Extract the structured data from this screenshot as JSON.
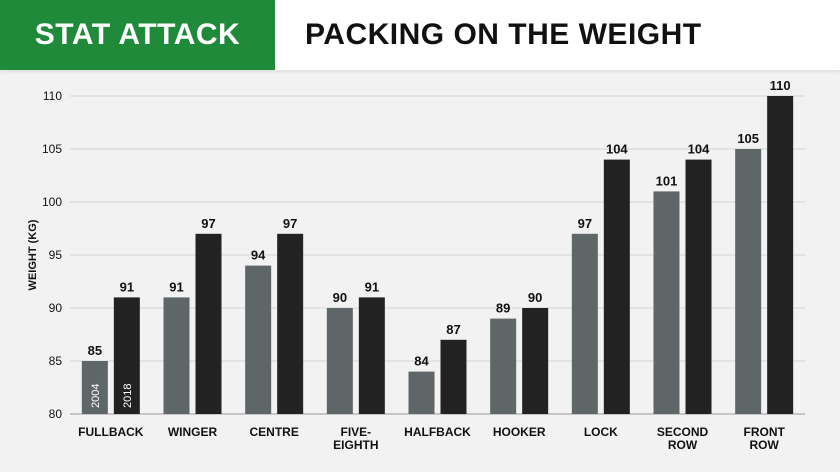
{
  "header": {
    "brand": "STAT ATTACK",
    "title": "PACKING ON THE WEIGHT"
  },
  "chart_data": {
    "type": "bar",
    "title": "PACKING ON THE WEIGHT",
    "xlabel": "",
    "ylabel": "WEIGHT (KG)",
    "ylim": [
      80,
      110
    ],
    "yticks": [
      80,
      85,
      90,
      95,
      100,
      105,
      110
    ],
    "grid": true,
    "legend": "inside first group bars",
    "categories": [
      [
        "FULLBACK"
      ],
      [
        "WINGER"
      ],
      [
        "CENTRE"
      ],
      [
        "FIVE-",
        "EIGHTH"
      ],
      [
        "HALFBACK"
      ],
      [
        "HOOKER"
      ],
      [
        "LOCK"
      ],
      [
        "SECOND",
        "ROW"
      ],
      [
        "FRONT",
        "ROW"
      ]
    ],
    "series": [
      {
        "name": "2004",
        "color": "#5f6668",
        "values": [
          85,
          91,
          94,
          90,
          84,
          89,
          97,
          101,
          105
        ]
      },
      {
        "name": "2018",
        "color": "#222222",
        "values": [
          91,
          97,
          97,
          91,
          87,
          90,
          104,
          104,
          110
        ]
      }
    ]
  }
}
